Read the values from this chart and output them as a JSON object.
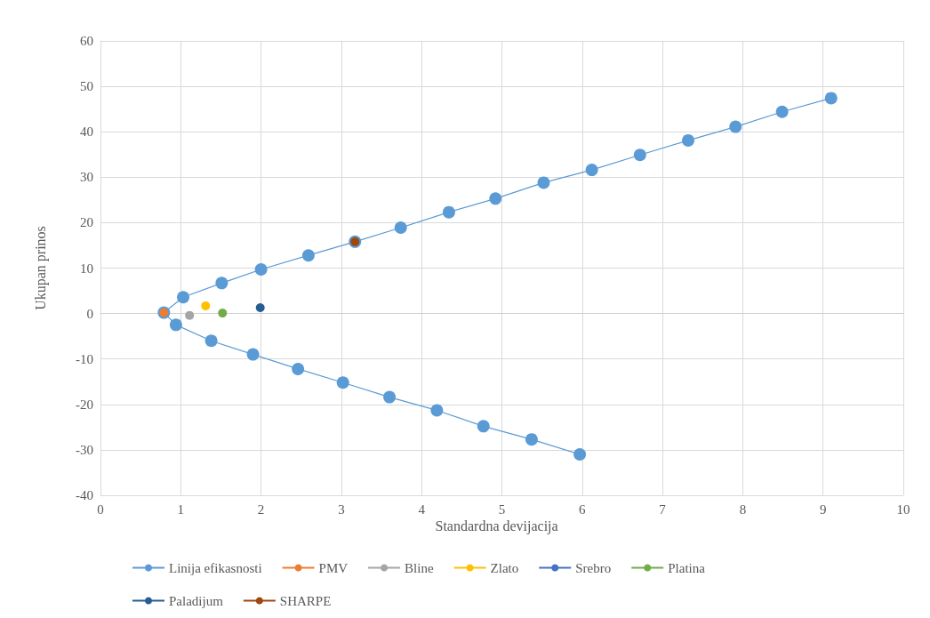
{
  "chart_data": {
    "type": "line",
    "xlabel": "Standardna devijacija",
    "ylabel": "Ukupan prinos",
    "xlim": [
      0,
      10
    ],
    "xticks": [
      0,
      1,
      2,
      3,
      4,
      5,
      6,
      7,
      8,
      9,
      10
    ],
    "ylim": [
      -40,
      60
    ],
    "yticks": [
      -40,
      -30,
      -20,
      -10,
      0,
      10,
      20,
      30,
      40,
      50,
      60
    ],
    "grid": true,
    "legend": "bottom",
    "marker": "circle",
    "series": [
      {
        "name": "Linija efikasnosti",
        "color": "#5b9bd5",
        "x": [
          5.97,
          5.37,
          4.77,
          4.19,
          3.6,
          3.02,
          2.46,
          1.9,
          1.38,
          0.94,
          0.79,
          1.03,
          1.51,
          2.0,
          2.59,
          3.17,
          3.74,
          4.34,
          4.92,
          5.52,
          6.12,
          6.72,
          7.32,
          7.91,
          8.49,
          9.1
        ],
        "values": [
          -31.0,
          -27.7,
          -24.8,
          -21.3,
          -18.4,
          -15.2,
          -12.2,
          -9.0,
          -6.0,
          -2.5,
          0.2,
          3.6,
          6.7,
          9.7,
          12.8,
          15.8,
          18.9,
          22.3,
          25.3,
          28.8,
          31.6,
          34.9,
          38.1,
          41.1,
          44.4,
          47.4
        ]
      },
      {
        "name": "PMV",
        "color": "#ed7d31",
        "x": [
          0.79
        ],
        "values": [
          0.2
        ]
      },
      {
        "name": "Bline",
        "color": "#a5a5a5",
        "x": [
          1.11
        ],
        "values": [
          -0.4
        ]
      },
      {
        "name": "Zlato",
        "color": "#ffc000",
        "x": [
          1.31
        ],
        "values": [
          1.7
        ]
      },
      {
        "name": "Srebro",
        "color": "#4472c4"
      },
      {
        "name": "Platina",
        "color": "#70ad47",
        "x": [
          1.52
        ],
        "values": [
          0.1
        ]
      },
      {
        "name": "Paladijum",
        "color": "#255e91",
        "x": [
          1.99
        ],
        "values": [
          1.3
        ]
      },
      {
        "name": "SHARPE",
        "color": "#9e480e",
        "x": [
          3.17
        ],
        "values": [
          15.8
        ]
      }
    ]
  }
}
